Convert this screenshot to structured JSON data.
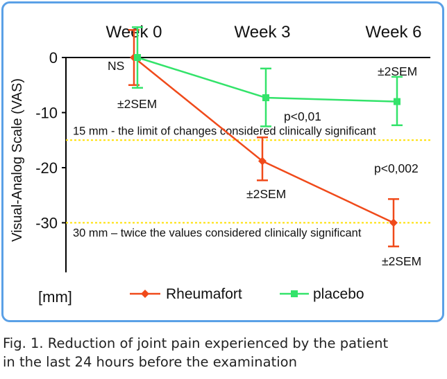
{
  "chart_data": {
    "type": "line",
    "categories": [
      "Week 0",
      "Week 3",
      "Week 6"
    ],
    "ylabel": "Visual-Analog Scale (VAS)",
    "yunit": "[mm]",
    "ylim": [
      -38,
      1
    ],
    "yticks": [
      0,
      -10,
      -20,
      -30
    ],
    "series": [
      {
        "name": "Rheumafort",
        "color": "#f04a1a",
        "marker": "diamond",
        "values": [
          0,
          -18.8,
          -30
        ],
        "err_low": [
          -5.0,
          -22.3,
          -34.3
        ],
        "err_high": [
          5.0,
          -14.5,
          -25.7
        ]
      },
      {
        "name": "placebo",
        "color": "#33e36a",
        "marker": "square",
        "values": [
          0,
          -7.3,
          -8
        ],
        "err_low": [
          -5.5,
          -12.5,
          -12.3
        ],
        "err_high": [
          5.5,
          -2,
          -3.5
        ]
      }
    ],
    "reference_lines": [
      {
        "value": -15,
        "label": "15 mm - the limit of changes considered clinically significant",
        "color": "#ffe000"
      },
      {
        "value": -30,
        "label": "30 mm – twice the values considered clinically significant",
        "color": "#ffe000"
      }
    ],
    "annotations": [
      "NS",
      "±2SEM",
      "±2SEM",
      "±2SEM",
      "±2SEM",
      "p<0,01",
      "p<0,002"
    ],
    "legend": "bottom"
  },
  "caption": {
    "line1": "Fig. 1. Reduction of joint pain experienced by the patient",
    "line2": "in the last 24 hours before the examination"
  }
}
